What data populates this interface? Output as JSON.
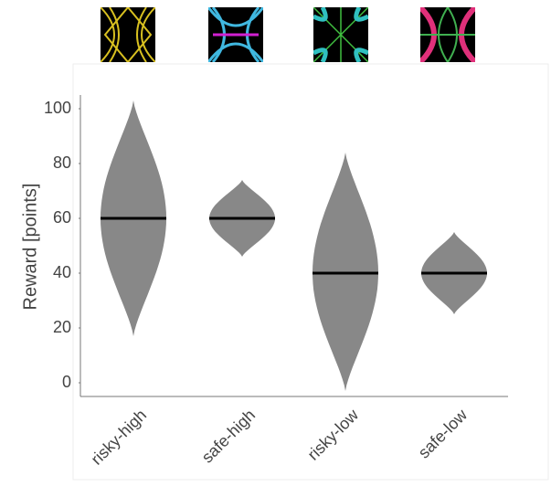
{
  "chart_data": {
    "type": "violin",
    "y_label": "Reward [points]",
    "categories": [
      "risky-high",
      "safe-high",
      "risky-low",
      "safe-low"
    ],
    "medians": [
      60,
      60,
      40,
      40
    ],
    "mins": [
      17,
      46,
      -3,
      25
    ],
    "maxs": [
      103,
      74,
      84,
      55
    ],
    "color": "#888888",
    "median_color": "#000000",
    "ylim": [
      -5,
      105
    ],
    "yticks": [
      0,
      20,
      40,
      60,
      80,
      100
    ]
  }
}
